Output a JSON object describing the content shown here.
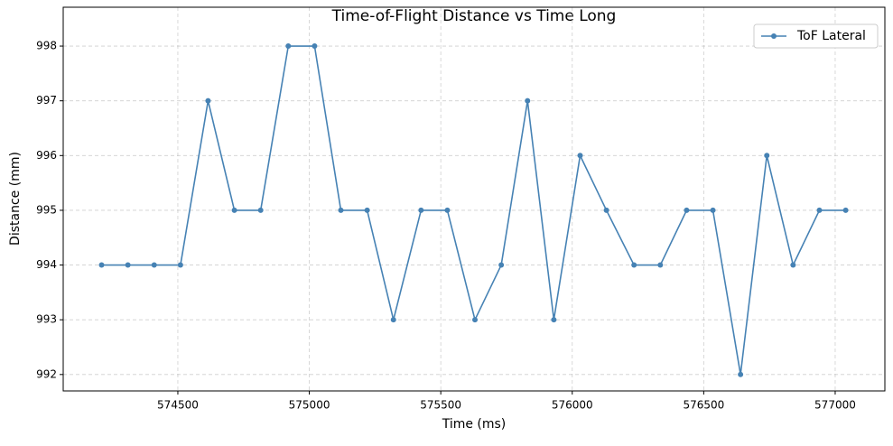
{
  "chart_data": {
    "type": "line",
    "title": "Time-of-Flight Distance vs Time Long",
    "x_label": "Time (ms)",
    "y_label": "Distance (mm)",
    "x": [
      574210,
      574310,
      574410,
      574510,
      574615,
      574715,
      574815,
      574920,
      575020,
      575120,
      575220,
      575320,
      575425,
      575525,
      575630,
      575730,
      575830,
      575930,
      576030,
      576130,
      576235,
      576335,
      576435,
      576535,
      576640,
      576740,
      576840,
      576940,
      577040
    ],
    "series": [
      {
        "name": "ToF Lateral",
        "color": "#4682b4",
        "values": [
          994,
          994,
          994,
          994,
          997,
          995,
          995,
          998,
          998,
          995,
          995,
          993,
          995,
          995,
          993,
          994,
          997,
          993,
          996,
          995,
          994,
          994,
          995,
          995,
          992,
          996,
          994,
          995,
          995
        ]
      }
    ],
    "xlim": [
      574064,
      577189
    ],
    "xticks": [
      574500,
      575000,
      575500,
      576000,
      576500,
      577000
    ],
    "ylim": [
      991.7,
      998.71
    ],
    "yticks": [
      992,
      993,
      994,
      995,
      996,
      997,
      998
    ],
    "grid": true,
    "legend": "upper right"
  }
}
